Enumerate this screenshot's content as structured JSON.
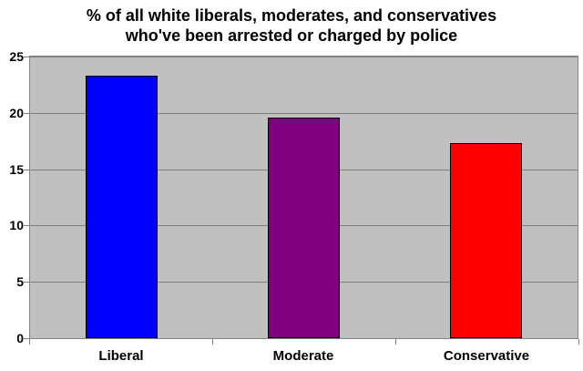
{
  "chart_data": {
    "type": "bar",
    "title_line1": "% of all white liberals, moderates, and conservatives",
    "title_line2": "who've been arrested or charged by police",
    "categories": [
      "Liberal",
      "Moderate",
      "Conservative"
    ],
    "values": [
      23.3,
      19.6,
      17.3
    ],
    "bar_colors": [
      "#0000FF",
      "#800080",
      "#FF0000"
    ],
    "xlabel": "",
    "ylabel": "",
    "ylim": [
      0,
      25
    ],
    "yticks": [
      0,
      5,
      10,
      15,
      20,
      25
    ],
    "grid": "horizontal",
    "legend": "none",
    "plot_bg_color": "#C0C0C0",
    "gridline_color": "#808080",
    "axis_color": "#808080",
    "bar_border_color": "#000000"
  }
}
